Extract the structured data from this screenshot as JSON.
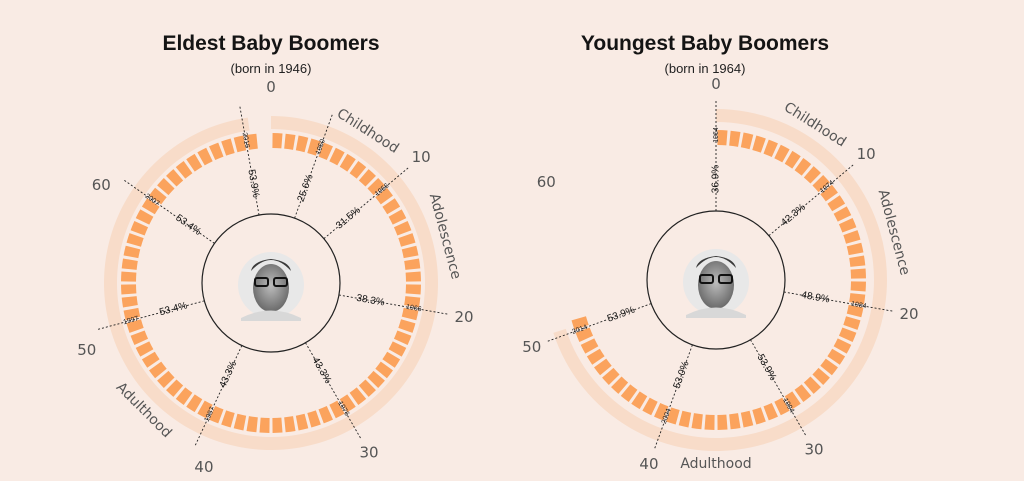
{
  "colors": {
    "background": "#f9ebe4",
    "bar": "#fba35d",
    "ring": "#f8dcc9",
    "text": "#141414"
  },
  "chart_data": [
    {
      "type": "radial-bar",
      "title": "Eldest Baby Boomers",
      "subtitle": "(born in 1946)",
      "age_ticks": [
        "0",
        "10",
        "20",
        "30",
        "40",
        "50",
        "60"
      ],
      "phases": [
        {
          "label": "Childhood",
          "from_age": 0,
          "to_age": 13
        },
        {
          "label": "Adolescence",
          "from_age": 10,
          "to_age": 20
        },
        {
          "label": "Adulthood",
          "from_age": 20,
          "to_age": 70
        }
      ],
      "bar_ages": [
        0,
        70
      ],
      "bar_values_relative": [
        1,
        0.75
      ],
      "markers": [
        {
          "year": "1950",
          "pct": "25.6%",
          "age": 4
        },
        {
          "year": "1956",
          "pct": "31.5%",
          "age": 10
        },
        {
          "year": "1966",
          "pct": "38.3%",
          "age": 20
        },
        {
          "year": "1976",
          "pct": "43.3%",
          "age": 30
        },
        {
          "year": "1987",
          "pct": "43.3%",
          "age": 41
        },
        {
          "year": "1997",
          "pct": "53.4%",
          "age": 51
        },
        {
          "year": "2007",
          "pct": "53.4%",
          "age": 61
        },
        {
          "year": "2016",
          "pct": "53.9%",
          "age": 70
        }
      ]
    },
    {
      "type": "radial-bar",
      "title": "Youngest Baby Boomers",
      "subtitle": "(born in 1964)",
      "age_ticks": [
        "0",
        "10",
        "20",
        "30",
        "40",
        "50",
        "60"
      ],
      "phases": [
        {
          "label": "Childhood",
          "from_age": 0,
          "to_age": 13
        },
        {
          "label": "Adolescence",
          "from_age": 10,
          "to_age": 20
        },
        {
          "label": "Adulthood",
          "from_age": 20,
          "to_age": 52
        }
      ],
      "bar_ages": [
        0,
        50
      ],
      "bar_values_relative": [
        1,
        0.75
      ],
      "markers": [
        {
          "year": "1964",
          "pct": "36.9%",
          "age": 0
        },
        {
          "year": "1974",
          "pct": "42.3%",
          "age": 10
        },
        {
          "year": "1984",
          "pct": "48.9%",
          "age": 20
        },
        {
          "year": "1994",
          "pct": "53.9%",
          "age": 30
        },
        {
          "year": "2004",
          "pct": "53.0%",
          "age": 40
        },
        {
          "year": "2014",
          "pct": "53.9%",
          "age": 50
        }
      ]
    }
  ]
}
